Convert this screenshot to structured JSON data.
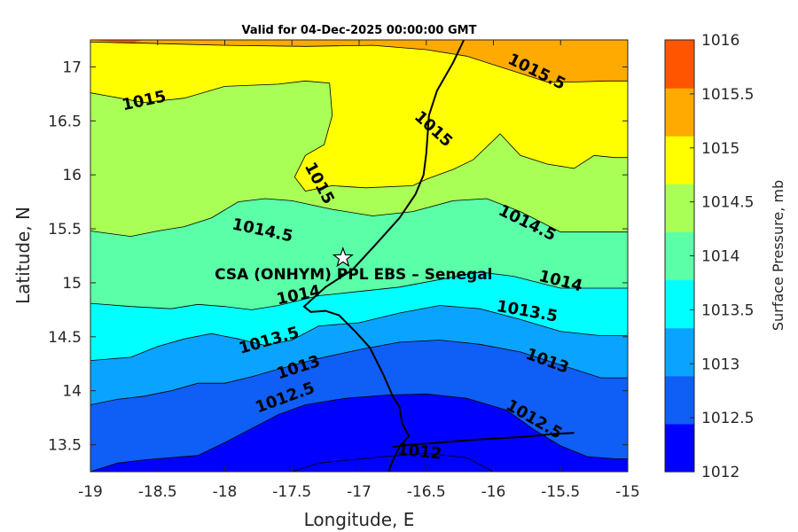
{
  "chart_data": {
    "type": "contour",
    "title": "Valid for 04-Dec-2025 00:00:00 GMT",
    "xlabel": "Longitude, E",
    "ylabel": "Latitude, N",
    "xlim": [
      -19,
      -15
    ],
    "ylim": [
      13.25,
      17.25
    ],
    "xticks": [
      -19,
      -18.5,
      -18,
      -17.5,
      -17,
      -16.5,
      -16,
      -15.5,
      -15
    ],
    "yticks": [
      13.5,
      14,
      14.5,
      15,
      15.5,
      16,
      16.5,
      17
    ],
    "grid": false,
    "colorbar": {
      "label": "Surface Pressure, mb",
      "levels": [
        1012,
        1012.5,
        1013,
        1013.5,
        1014,
        1014.5,
        1015,
        1015.5,
        1016
      ],
      "colors": [
        "#0000ff",
        "#0f5ef5",
        "#0aa3ff",
        "#00ffff",
        "#5affa8",
        "#a9ff55",
        "#ffff00",
        "#ffaa00",
        "#ff5500"
      ]
    },
    "contours": [
      {
        "level": 1015.5,
        "points": [
          [
            -19,
            17.23
          ],
          [
            -18.6,
            17.22
          ],
          [
            -18,
            17.2
          ],
          [
            -17.4,
            17.19
          ],
          [
            -16.9,
            17.2
          ],
          [
            -16.5,
            17.16
          ],
          [
            -16.2,
            17.1
          ],
          [
            -15.85,
            16.96
          ],
          [
            -15.6,
            16.86
          ],
          [
            -15.4,
            16.86
          ],
          [
            -15.15,
            16.87
          ],
          [
            -15,
            16.87
          ]
        ]
      },
      {
        "level": 1015,
        "points": [
          [
            -19,
            16.76
          ],
          [
            -18.6,
            16.67
          ],
          [
            -18.3,
            16.71
          ],
          [
            -18.0,
            16.82
          ],
          [
            -17.6,
            16.84
          ],
          [
            -17.4,
            16.87
          ],
          [
            -17.22,
            16.85
          ],
          [
            -17.2,
            16.55
          ],
          [
            -17.26,
            16.28
          ],
          [
            -17.4,
            16.18
          ],
          [
            -17.48,
            15.98
          ],
          [
            -17.4,
            15.85
          ],
          [
            -17.2,
            15.9
          ],
          [
            -16.95,
            15.88
          ],
          [
            -16.6,
            15.9
          ],
          [
            -16.5,
            15.96
          ],
          [
            -16.3,
            16.05
          ],
          [
            -16.15,
            16.14
          ],
          [
            -15.95,
            16.38
          ],
          [
            -15.8,
            16.18
          ],
          [
            -15.6,
            16.1
          ],
          [
            -15.4,
            16.06
          ],
          [
            -15.25,
            16.18
          ],
          [
            -15.1,
            16.16
          ],
          [
            -15,
            16.16
          ]
        ]
      },
      {
        "level": 1014.5,
        "points": [
          [
            -19,
            15.48
          ],
          [
            -18.7,
            15.43
          ],
          [
            -18.5,
            15.48
          ],
          [
            -18.3,
            15.52
          ],
          [
            -18.1,
            15.6
          ],
          [
            -17.9,
            15.75
          ],
          [
            -17.7,
            15.78
          ],
          [
            -17.5,
            15.76
          ],
          [
            -17.2,
            15.68
          ],
          [
            -16.9,
            15.62
          ],
          [
            -16.6,
            15.66
          ],
          [
            -16.3,
            15.76
          ],
          [
            -16.05,
            15.78
          ],
          [
            -15.8,
            15.66
          ],
          [
            -15.5,
            15.47
          ],
          [
            -15.2,
            15.47
          ],
          [
            -15,
            15.47
          ]
        ]
      },
      {
        "level": 1014,
        "points": [
          [
            -19,
            14.81
          ],
          [
            -18.7,
            14.78
          ],
          [
            -18.4,
            14.76
          ],
          [
            -18.2,
            14.8
          ],
          [
            -18.0,
            14.78
          ],
          [
            -17.8,
            14.75
          ],
          [
            -17.6,
            14.79
          ],
          [
            -17.3,
            14.88
          ],
          [
            -17.0,
            14.92
          ],
          [
            -16.7,
            14.96
          ],
          [
            -16.4,
            15.03
          ],
          [
            -16.1,
            15.1
          ],
          [
            -15.85,
            15.06
          ],
          [
            -15.5,
            14.95
          ],
          [
            -15.3,
            14.95
          ],
          [
            -15,
            14.95
          ]
        ]
      },
      {
        "level": 1013.5,
        "points": [
          [
            -19,
            14.28
          ],
          [
            -18.7,
            14.31
          ],
          [
            -18.5,
            14.41
          ],
          [
            -18.3,
            14.48
          ],
          [
            -18.1,
            14.53
          ],
          [
            -17.9,
            14.48
          ],
          [
            -17.7,
            14.42
          ],
          [
            -17.5,
            14.47
          ],
          [
            -17.3,
            14.6
          ],
          [
            -17.0,
            14.63
          ],
          [
            -16.7,
            14.72
          ],
          [
            -16.4,
            14.79
          ],
          [
            -16.1,
            14.76
          ],
          [
            -15.8,
            14.66
          ],
          [
            -15.5,
            14.55
          ],
          [
            -15.2,
            14.51
          ],
          [
            -15,
            14.51
          ]
        ]
      },
      {
        "level": 1013,
        "points": [
          [
            -19,
            13.87
          ],
          [
            -18.8,
            13.92
          ],
          [
            -18.6,
            13.95
          ],
          [
            -18.4,
            14.0
          ],
          [
            -18.2,
            14.07
          ],
          [
            -18.0,
            14.07
          ],
          [
            -17.8,
            14.13
          ],
          [
            -17.6,
            14.2
          ],
          [
            -17.3,
            14.3
          ],
          [
            -17.0,
            14.38
          ],
          [
            -16.7,
            14.45
          ],
          [
            -16.4,
            14.47
          ],
          [
            -16.1,
            14.43
          ],
          [
            -15.8,
            14.36
          ],
          [
            -15.5,
            14.24
          ],
          [
            -15.2,
            14.12
          ],
          [
            -15,
            14.12
          ]
        ]
      },
      {
        "level": 1012.5,
        "points": [
          [
            -19,
            13.25
          ],
          [
            -18.8,
            13.33
          ],
          [
            -18.6,
            13.36
          ],
          [
            -18.4,
            13.38
          ],
          [
            -18.2,
            13.4
          ],
          [
            -18.0,
            13.52
          ],
          [
            -17.8,
            13.65
          ],
          [
            -17.6,
            13.78
          ],
          [
            -17.4,
            13.87
          ],
          [
            -17.1,
            13.93
          ],
          [
            -16.8,
            13.96
          ],
          [
            -16.5,
            13.97
          ],
          [
            -16.2,
            13.93
          ],
          [
            -15.9,
            13.82
          ],
          [
            -15.7,
            13.64
          ],
          [
            -15.5,
            13.49
          ],
          [
            -15.3,
            13.39
          ],
          [
            -15.1,
            13.37
          ],
          [
            -15,
            13.37
          ]
        ]
      }
    ],
    "contour_labels": [
      {
        "text": "1015.5",
        "lon": -15.68,
        "lat": 16.95,
        "angle": 26
      },
      {
        "text": "1015",
        "lon": -18.6,
        "lat": 16.68,
        "angle": -12
      },
      {
        "text": "1015",
        "lon": -16.45,
        "lat": 16.42,
        "angle": 42
      },
      {
        "text": "1015",
        "lon": -17.3,
        "lat": 15.92,
        "angle": 62
      },
      {
        "text": "1014.5",
        "lon": -17.72,
        "lat": 15.48,
        "angle": 12
      },
      {
        "text": "1014.5",
        "lon": -15.75,
        "lat": 15.55,
        "angle": 26
      },
      {
        "text": "1014",
        "lon": -17.45,
        "lat": 14.88,
        "angle": -12
      },
      {
        "text": "1014",
        "lon": -15.5,
        "lat": 15.01,
        "angle": 14
      },
      {
        "text": "1013.5",
        "lon": -17.67,
        "lat": 14.46,
        "angle": -16
      },
      {
        "text": "1013.5",
        "lon": -15.75,
        "lat": 14.73,
        "angle": 10
      },
      {
        "text": "1013",
        "lon": -17.45,
        "lat": 14.21,
        "angle": -18
      },
      {
        "text": "1013",
        "lon": -15.6,
        "lat": 14.27,
        "angle": 20
      },
      {
        "text": "1012.5",
        "lon": -17.55,
        "lat": 13.93,
        "angle": -20
      },
      {
        "text": "1012.5",
        "lon": -15.7,
        "lat": 13.73,
        "angle": 30
      },
      {
        "text": "1012",
        "lon": -16.55,
        "lat": 13.43,
        "angle": 6
      }
    ],
    "coastline": [
      [
        -16.22,
        17.25
      ],
      [
        -16.3,
        17.04
      ],
      [
        -16.42,
        16.78
      ],
      [
        -16.48,
        16.55
      ],
      [
        -16.5,
        16.2
      ],
      [
        -16.52,
        16.0
      ],
      [
        -16.58,
        15.82
      ],
      [
        -16.7,
        15.6
      ],
      [
        -16.88,
        15.35
      ],
      [
        -17.05,
        15.12
      ],
      [
        -17.25,
        14.96
      ],
      [
        -17.41,
        14.78
      ],
      [
        -17.36,
        14.73
      ],
      [
        -17.25,
        14.74
      ],
      [
        -17.15,
        14.7
      ],
      [
        -17.03,
        14.55
      ],
      [
        -16.92,
        14.4
      ],
      [
        -16.82,
        14.15
      ],
      [
        -16.75,
        13.95
      ],
      [
        -16.7,
        13.85
      ],
      [
        -16.68,
        13.7
      ],
      [
        -16.63,
        13.58
      ],
      [
        -16.7,
        13.48
      ],
      [
        -16.75,
        13.35
      ],
      [
        -16.78,
        13.25
      ]
    ],
    "gambia_river": [
      [
        -16.75,
        13.48
      ],
      [
        -16.62,
        13.5
      ],
      [
        -16.4,
        13.52
      ],
      [
        -16.1,
        13.55
      ],
      [
        -15.8,
        13.57
      ],
      [
        -15.55,
        13.6
      ],
      [
        -15.4,
        13.61
      ]
    ],
    "marker": {
      "label": "CSA (ONHYM) PPL EBS  – Senegal",
      "lon": -17.12,
      "lat": 15.23
    }
  }
}
